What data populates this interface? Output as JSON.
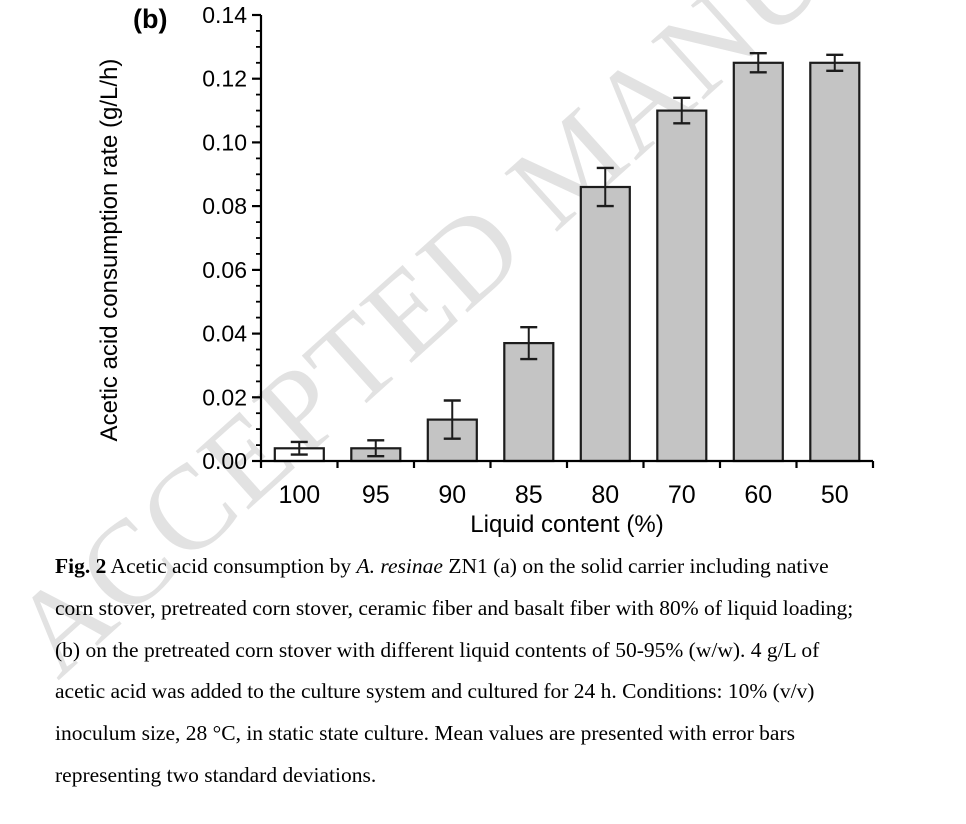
{
  "watermark": "ACCEPTED MANUSCRIPT",
  "figure_label": "(b)",
  "chart_data": {
    "type": "bar",
    "title": "",
    "xlabel": "Liquid content (%)",
    "ylabel": "Acetic acid consumption rate (g/L/h)",
    "categories": [
      "100",
      "95",
      "90",
      "85",
      "80",
      "70",
      "60",
      "50"
    ],
    "values": [
      0.004,
      0.004,
      0.013,
      0.037,
      0.086,
      0.11,
      0.125,
      0.125
    ],
    "errors": [
      0.002,
      0.0025,
      0.006,
      0.005,
      0.006,
      0.004,
      0.003,
      0.0025
    ],
    "ylim": [
      0,
      0.14
    ],
    "y_major_step": 0.02,
    "y_minor_step": 0.005,
    "y_tick_labels": [
      "0.00",
      "0.02",
      "0.04",
      "0.06",
      "0.08",
      "0.10",
      "0.12",
      "0.14"
    ],
    "grid": false,
    "legend_position": "none",
    "bar_fills": [
      "#ffffff",
      "#c4c4c4",
      "#c4c4c4",
      "#c4c4c4",
      "#c4c4c4",
      "#c4c4c4",
      "#c4c4c4",
      "#c4c4c4"
    ],
    "bar_stroke": "#1c1c1c",
    "axis_color": "#000000",
    "error_bar_color": "#1c1c1c"
  },
  "caption": {
    "lines": [
      [
        {
          "t": "Fig. 2",
          "b": true
        },
        {
          "t": " Acetic acid consumption by "
        },
        {
          "t": "A. resinae",
          "i": true
        },
        {
          "t": " ZN1 (a) on the solid carrier including native"
        }
      ],
      [
        {
          "t": "corn stover, pretreated corn stover, ceramic fiber and basalt fiber with 80% of liquid loading;"
        }
      ],
      [
        {
          "t": "(b) on the pretreated corn stover with different liquid contents of 50-95% (w/w). 4 g/L of"
        }
      ],
      [
        {
          "t": "acetic acid was added to the culture system and cultured for 24 h. Conditions: 10% (v/v)"
        }
      ],
      [
        {
          "t": "inoculum size, 28 °C, in static state culture. Mean values are presented with error bars"
        }
      ],
      [
        {
          "t": "representing two standard deviations."
        }
      ]
    ]
  }
}
